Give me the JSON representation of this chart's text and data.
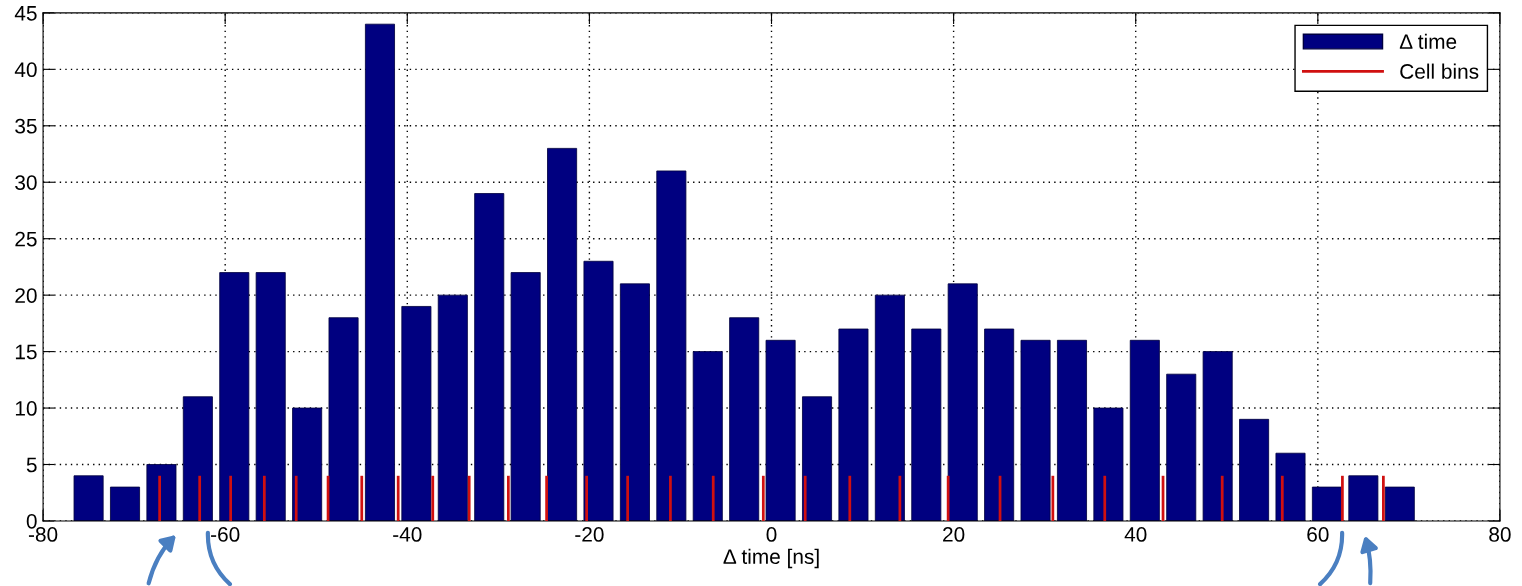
{
  "chart_data": {
    "type": "histogram",
    "xlabel": "Δ time [ns]",
    "bins": [
      -77,
      -73,
      -69,
      -65,
      -61,
      -57,
      -53,
      -49,
      -45,
      -41,
      -37,
      -33,
      -29,
      -25,
      -21,
      -17,
      -13,
      -9,
      -5,
      -1,
      3,
      7,
      11,
      15,
      19,
      23,
      27,
      31,
      35,
      39,
      43,
      47,
      51,
      55,
      59,
      63,
      67,
      71
    ],
    "series": [
      {
        "name": "Δ time",
        "color": "#000080",
        "values": [
          4,
          3,
          5,
          11,
          22,
          22,
          10,
          18,
          44,
          19,
          20,
          29,
          22,
          33,
          23,
          21,
          31,
          15,
          18,
          16,
          11,
          17,
          20,
          17,
          21,
          17,
          16,
          16,
          10,
          16,
          13,
          15,
          9,
          6,
          3,
          4,
          3
        ]
      },
      {
        "name": "Cell bins",
        "type": "bar",
        "color": "#d01010",
        "x": [
          -67.2,
          -62.8,
          -59.4,
          -55.7,
          -52.2,
          -48.7,
          -45.0,
          -41.0,
          -37.2,
          -33.2,
          -28.9,
          -24.7,
          -20.3,
          -15.8,
          -11.1,
          -6.4,
          -0.9,
          3.7,
          8.6,
          14.1,
          19.4,
          25.1,
          30.9,
          36.6,
          43.0,
          49.5,
          56.1,
          62.7,
          67.2
        ],
        "values": [
          4,
          4,
          4,
          4,
          4,
          4,
          4,
          4,
          4,
          4,
          4,
          4,
          4,
          4,
          4,
          4,
          4,
          4,
          4,
          4,
          4,
          4,
          4,
          4,
          4,
          4,
          4,
          4,
          4
        ]
      }
    ],
    "xlim": [
      -80,
      80
    ],
    "xticks": [
      -80,
      -60,
      -40,
      -20,
      0,
      20,
      40,
      60,
      80
    ],
    "ylim": [
      0,
      45
    ],
    "yticks": [
      0,
      5,
      10,
      15,
      20,
      25,
      30,
      35,
      40,
      45
    ],
    "grid": true,
    "legend": "top right"
  }
}
